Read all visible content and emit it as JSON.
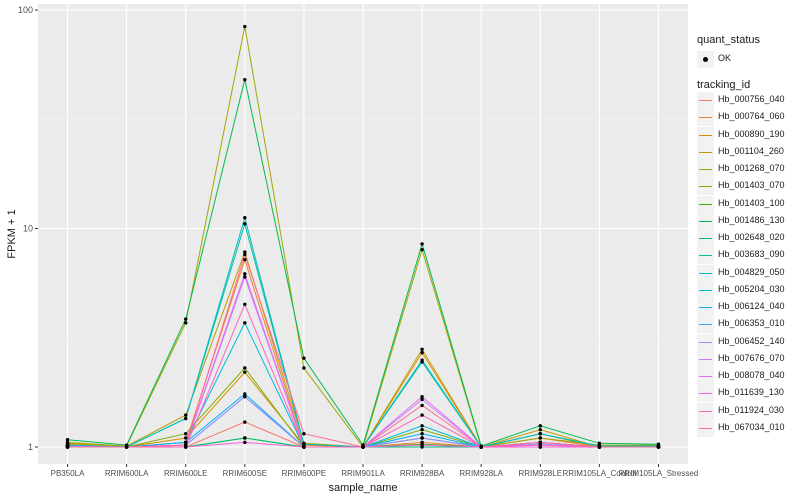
{
  "chart_data": {
    "type": "line",
    "xlabel": "sample_name",
    "ylabel": "FPKM + 1",
    "yscale": "log10",
    "ylim": [
      1,
      100
    ],
    "yticks": [
      1,
      10,
      100
    ],
    "ytick_labels": [
      "1",
      "10",
      "100"
    ],
    "categories": [
      "PB350LA",
      "RRIM600LA",
      "RRIM600LE",
      "RRIM600SE",
      "RRIM600PE",
      "RRIM901LA",
      "RRIM928BA",
      "RRIM928LA",
      "RRIM928LE",
      "RRIM105LA_Control",
      "RRIM105LA_Stressed"
    ],
    "legend_quant": {
      "title": "quant_status",
      "items": [
        "OK"
      ]
    },
    "legend_tracking_title": "tracking_id",
    "series": [
      {
        "name": "Hb_000756_040",
        "color": "#F8766D",
        "values": [
          1.01,
          1.0,
          1.0,
          1.3,
          1.0,
          1.0,
          1.1,
          1.0,
          1.05,
          1.0,
          1.0
        ]
      },
      {
        "name": "Hb_000764_060",
        "color": "#EA8331",
        "values": [
          1.02,
          1.0,
          1.05,
          7.2,
          1.0,
          1.0,
          1.05,
          1.0,
          1.1,
          1.0,
          1.0
        ]
      },
      {
        "name": "Hb_000890_190",
        "color": "#D89000",
        "values": [
          1.03,
          1.0,
          1.1,
          2.2,
          1.02,
          1.0,
          2.7,
          1.0,
          1.15,
          1.0,
          1.0
        ]
      },
      {
        "name": "Hb_001104_260",
        "color": "#C09B00",
        "values": [
          1.04,
          1.01,
          1.4,
          7.8,
          1.04,
          1.0,
          2.8,
          1.0,
          1.2,
          1.0,
          1.0
        ]
      },
      {
        "name": "Hb_001268_070",
        "color": "#A3A500",
        "values": [
          1.05,
          1.01,
          3.7,
          84,
          2.3,
          1.0,
          8.0,
          1.0,
          1.1,
          1.02,
          1.02
        ]
      },
      {
        "name": "Hb_001403_070",
        "color": "#7CAE00",
        "values": [
          1.02,
          1.0,
          1.15,
          2.3,
          1.0,
          1.0,
          1.2,
          1.0,
          1.05,
          1.0,
          1.0
        ]
      },
      {
        "name": "Hb_001403_100",
        "color": "#39B600",
        "values": [
          1.0,
          1.0,
          1.0,
          1.1,
          1.0,
          1.0,
          1.03,
          1.0,
          1.0,
          1.0,
          1.0
        ]
      },
      {
        "name": "Hb_001486_130",
        "color": "#00BB4E",
        "values": [
          1.08,
          1.02,
          3.85,
          48,
          2.55,
          1.02,
          8.5,
          1.01,
          1.25,
          1.04,
          1.03
        ]
      },
      {
        "name": "Hb_002648_020",
        "color": "#00BF7D",
        "values": [
          1.01,
          1.0,
          1.0,
          1.1,
          1.0,
          1.0,
          1.0,
          1.0,
          1.0,
          1.0,
          1.0
        ]
      },
      {
        "name": "Hb_003683_090",
        "color": "#00C1A3",
        "values": [
          1.02,
          1.0,
          1.35,
          10.5,
          1.03,
          1.0,
          2.45,
          1.0,
          1.15,
          1.01,
          1.01
        ]
      },
      {
        "name": "Hb_004829_050",
        "color": "#00BFC4",
        "values": [
          1.02,
          1.0,
          1.35,
          11.2,
          1.03,
          1.0,
          2.5,
          1.0,
          1.15,
          1.01,
          1.01
        ]
      },
      {
        "name": "Hb_005204_030",
        "color": "#00BAE0",
        "values": [
          1.01,
          1.0,
          1.05,
          3.7,
          1.0,
          1.0,
          1.25,
          1.0,
          1.05,
          1.0,
          1.0
        ]
      },
      {
        "name": "Hb_006124_040",
        "color": "#00B0F6",
        "values": [
          1.01,
          1.0,
          1.05,
          1.75,
          1.0,
          1.0,
          1.15,
          1.0,
          1.05,
          1.0,
          1.0
        ]
      },
      {
        "name": "Hb_006353_010",
        "color": "#35A2FF",
        "values": [
          1.01,
          1.0,
          1.02,
          1.7,
          1.0,
          1.0,
          1.1,
          1.0,
          1.03,
          1.0,
          1.0
        ]
      },
      {
        "name": "Hb_006452_140",
        "color": "#9590FF",
        "values": [
          1.01,
          1.0,
          1.02,
          1.7,
          1.0,
          1.0,
          1.1,
          1.0,
          1.03,
          1.0,
          1.0
        ]
      },
      {
        "name": "Hb_007676_070",
        "color": "#C77CFF",
        "values": [
          1.0,
          1.0,
          1.02,
          6.0,
          1.0,
          1.0,
          1.65,
          1.0,
          1.05,
          1.0,
          1.0
        ]
      },
      {
        "name": "Hb_008078_040",
        "color": "#E76BF3",
        "values": [
          1.0,
          1.0,
          1.02,
          6.2,
          1.0,
          1.0,
          1.7,
          1.0,
          1.05,
          1.0,
          1.0
        ]
      },
      {
        "name": "Hb_011639_130",
        "color": "#FA62DB",
        "values": [
          1.0,
          1.0,
          1.0,
          1.05,
          1.0,
          1.0,
          1.02,
          1.0,
          1.0,
          1.0,
          1.0
        ]
      },
      {
        "name": "Hb_011924_030",
        "color": "#FF62BC",
        "values": [
          1.0,
          1.0,
          1.0,
          4.5,
          1.0,
          1.0,
          1.4,
          1.0,
          1.02,
          1.0,
          1.0
        ]
      },
      {
        "name": "Hb_067034_010",
        "color": "#FF6C91",
        "values": [
          1.0,
          1.0,
          1.02,
          7.6,
          1.15,
          1.0,
          1.55,
          1.0,
          1.05,
          1.0,
          1.0
        ]
      }
    ]
  }
}
